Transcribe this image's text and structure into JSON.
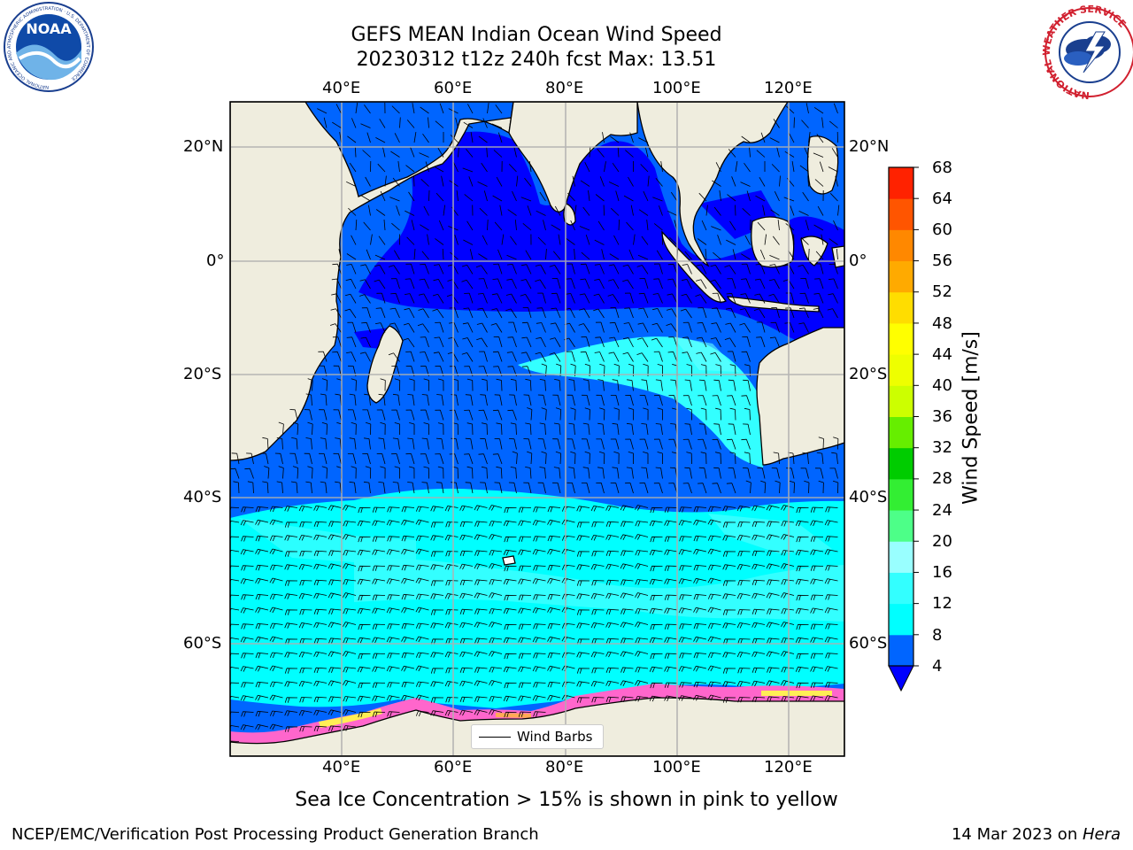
{
  "title": {
    "line1": "GEFS MEAN Indian Ocean Wind Speed",
    "line2": "20230312 t12z 240h fcst   Max: 13.51"
  },
  "map": {
    "lon_labels_top": [
      "40°E",
      "60°E",
      "80°E",
      "100°E",
      "120°E"
    ],
    "lon_labels_bottom": [
      "40°E",
      "60°E",
      "80°E",
      "100°E",
      "120°E"
    ],
    "lat_labels_left": [
      "20°N",
      "0°",
      "20°S",
      "40°S",
      "60°S"
    ],
    "lat_labels_right": [
      "20°N",
      "0°",
      "20°S",
      "40°S",
      "60°S"
    ],
    "lon_values": [
      40,
      60,
      80,
      100,
      120
    ],
    "lat_values": [
      20,
      0,
      -20,
      -40,
      -60
    ],
    "extent": {
      "lon_min": 20,
      "lon_max": 130,
      "lat_min": -74,
      "lat_max": 28
    },
    "land_color": "#efedde",
    "gridlines": true
  },
  "legend": {
    "label": "Wind Barbs"
  },
  "colorbar": {
    "label": "Wind Speed [m/s]",
    "ticks": [
      "68",
      "64",
      "60",
      "56",
      "52",
      "48",
      "44",
      "40",
      "36",
      "32",
      "28",
      "24",
      "20",
      "16",
      "12",
      "8",
      "4"
    ],
    "levels": [
      4,
      8,
      12,
      16,
      20,
      24,
      28,
      32,
      36,
      40,
      44,
      48,
      52,
      56,
      60,
      64,
      68
    ],
    "colors": [
      "#0065ff",
      "#00ffff",
      "#33ffff",
      "#99ffff",
      "#4dff88",
      "#33ee33",
      "#00cc00",
      "#66ee00",
      "#ccff00",
      "#eeff00",
      "#ffff00",
      "#ffdd00",
      "#ffaa00",
      "#ff8800",
      "#ff5500",
      "#ff2200"
    ],
    "under_color": "#0000ff",
    "max": 13.51
  },
  "wind_colors": {
    "lt4": "#0000ff",
    "4to8": "#0065ff",
    "8to12": "#00ffff",
    "12to16": "#33ffff"
  },
  "footnote": "Sea Ice Concentration > 15% is shown in pink to yellow",
  "credit_left": "NCEP/EMC/Verification Post Processing Product Generation Branch",
  "credit_right_date": "14 Mar 2023 on ",
  "credit_right_machine": "Hera",
  "logos": {
    "left": "NOAA",
    "left_ring": "NATIONAL OCEANIC AND ATMOSPHERIC ADMINISTRATION · U.S. DEPARTMENT OF COMMERCE",
    "right_ring": "NATIONAL WEATHER SERVICE"
  }
}
